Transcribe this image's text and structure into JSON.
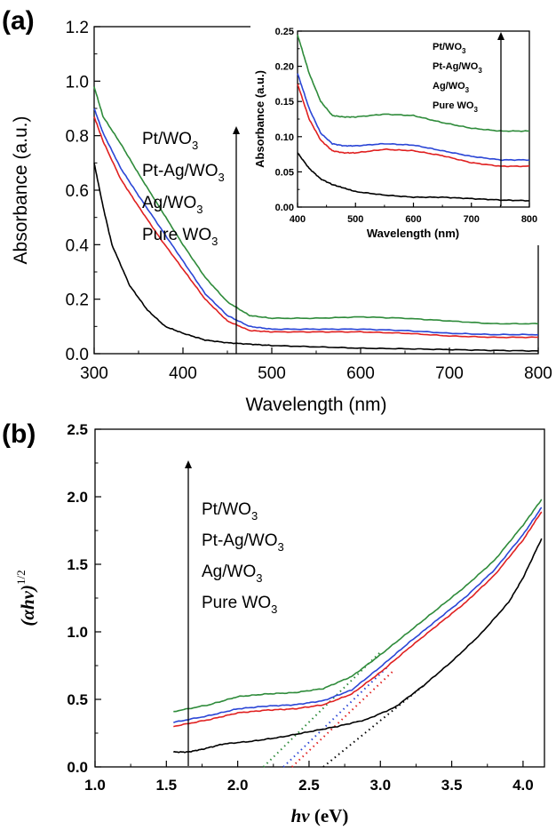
{
  "chart_data": [
    {
      "panel": "(a)",
      "type": "line",
      "xlabel": "Wavelength (nm)",
      "ylabel": "Absorbance (a.u.)",
      "xlim": [
        300,
        800
      ],
      "ylim": [
        0.0,
        1.2
      ],
      "xticks": [
        300,
        400,
        500,
        600,
        700,
        800
      ],
      "yticks": [
        0.0,
        0.2,
        0.4,
        0.6,
        0.8,
        1.0,
        1.2
      ],
      "grid": false,
      "legend_position": "left-middle",
      "legend_arrow": "upward",
      "series": [
        {
          "name": "Pt/WO3",
          "label_main": "Pt/WO",
          "sub": "3",
          "color": "#2e8b3a",
          "x": [
            300,
            310,
            330,
            350,
            375,
            400,
            425,
            450,
            475,
            500,
            550,
            600,
            650,
            700,
            750,
            800
          ],
          "y": [
            0.98,
            0.87,
            0.77,
            0.66,
            0.53,
            0.4,
            0.28,
            0.19,
            0.14,
            0.13,
            0.13,
            0.135,
            0.13,
            0.12,
            0.11,
            0.11
          ]
        },
        {
          "name": "Pt-Ag/WO3",
          "label_main": "Pt-Ag/WO",
          "sub": "3",
          "color": "#2b46d6",
          "x": [
            300,
            310,
            330,
            350,
            375,
            400,
            425,
            450,
            475,
            500,
            550,
            600,
            650,
            700,
            750,
            800
          ],
          "y": [
            0.9,
            0.81,
            0.68,
            0.58,
            0.46,
            0.34,
            0.22,
            0.14,
            0.1,
            0.09,
            0.09,
            0.09,
            0.085,
            0.075,
            0.07,
            0.07
          ]
        },
        {
          "name": "Ag/WO3",
          "label_main": "Ag/WO",
          "sub": "3",
          "color": "#e02020",
          "x": [
            300,
            310,
            330,
            350,
            375,
            400,
            425,
            450,
            475,
            500,
            550,
            600,
            650,
            700,
            750,
            800
          ],
          "y": [
            0.87,
            0.78,
            0.64,
            0.54,
            0.42,
            0.31,
            0.2,
            0.12,
            0.085,
            0.08,
            0.08,
            0.08,
            0.075,
            0.065,
            0.06,
            0.06
          ]
        },
        {
          "name": "Pure WO3",
          "label_main": "Pure WO",
          "sub": "3",
          "color": "#000000",
          "x": [
            300,
            310,
            320,
            340,
            360,
            380,
            400,
            425,
            450,
            475,
            500,
            550,
            600,
            650,
            700,
            750,
            800
          ],
          "y": [
            0.7,
            0.54,
            0.4,
            0.25,
            0.16,
            0.1,
            0.075,
            0.05,
            0.04,
            0.035,
            0.03,
            0.025,
            0.02,
            0.018,
            0.015,
            0.012,
            0.01
          ]
        }
      ]
    },
    {
      "panel": "(a) inset",
      "type": "line",
      "xlabel": "Wavelength (nm)",
      "ylabel": "Absorbance (a.u.)",
      "xlim": [
        400,
        800
      ],
      "ylim": [
        0.0,
        0.25
      ],
      "xticks": [
        400,
        500,
        600,
        700,
        800
      ],
      "yticks": [
        0.0,
        0.05,
        0.1,
        0.15,
        0.2,
        0.25
      ],
      "ytick_labels": [
        "0.00",
        "0.05",
        "0.10",
        "0.15",
        "0.20",
        "0.25"
      ],
      "grid": false,
      "legend_position": "top-right",
      "legend_arrow": "upward",
      "series": [
        {
          "name": "Pt/WO3",
          "label_main": "Pt/WO",
          "sub": "3",
          "color": "#2e8b3a",
          "x": [
            400,
            420,
            440,
            460,
            480,
            500,
            550,
            600,
            650,
            700,
            750,
            800
          ],
          "y": [
            0.245,
            0.19,
            0.15,
            0.13,
            0.128,
            0.128,
            0.132,
            0.13,
            0.12,
            0.112,
            0.108,
            0.108
          ]
        },
        {
          "name": "Pt-Ag/WO3",
          "label_main": "Pt-Ag/WO",
          "sub": "3",
          "color": "#2b46d6",
          "x": [
            400,
            420,
            440,
            460,
            480,
            500,
            550,
            600,
            650,
            700,
            750,
            800
          ],
          "y": [
            0.19,
            0.14,
            0.105,
            0.09,
            0.087,
            0.087,
            0.09,
            0.088,
            0.08,
            0.072,
            0.067,
            0.067
          ]
        },
        {
          "name": "Ag/WO3",
          "label_main": "Ag/WO",
          "sub": "3",
          "color": "#e02020",
          "x": [
            400,
            420,
            440,
            460,
            480,
            500,
            550,
            600,
            650,
            700,
            750,
            800
          ],
          "y": [
            0.175,
            0.125,
            0.095,
            0.08,
            0.077,
            0.077,
            0.082,
            0.08,
            0.073,
            0.063,
            0.058,
            0.058
          ]
        },
        {
          "name": "Pure WO3",
          "label_main": "Pure WO",
          "sub": "3",
          "color": "#000000",
          "x": [
            400,
            420,
            440,
            460,
            480,
            500,
            550,
            600,
            650,
            700,
            750,
            800
          ],
          "y": [
            0.077,
            0.055,
            0.04,
            0.032,
            0.027,
            0.022,
            0.017,
            0.014,
            0.014,
            0.012,
            0.01,
            0.009
          ]
        }
      ]
    },
    {
      "panel": "(b)",
      "type": "line",
      "xlabel": "hν (eV)",
      "xlabel_italic": "hν",
      "xlabel_unit": " (eV)",
      "ylabel": "(αhν)1/2",
      "ylabel_italic": "(αhν)",
      "ylabel_sup": "1/2",
      "xlim": [
        1.0,
        4.15
      ],
      "ylim": [
        0.0,
        2.5
      ],
      "xticks": [
        1.0,
        1.5,
        2.0,
        2.5,
        3.0,
        3.5,
        4.0
      ],
      "xtick_labels": [
        "1.0",
        "1.5",
        "2.0",
        "2.5",
        "3.0",
        "3.5",
        "4.0"
      ],
      "yticks": [
        0.0,
        0.5,
        1.0,
        1.5,
        2.0,
        2.5
      ],
      "ytick_labels": [
        "0.0",
        "0.5",
        "1.0",
        "1.5",
        "2.0",
        "2.5"
      ],
      "grid": false,
      "legend_position": "left",
      "legend_arrow": "upward",
      "series": [
        {
          "name": "Pt/WO3",
          "label_main": "Pt/WO",
          "sub": "3",
          "color": "#2e8b3a",
          "x": [
            1.55,
            1.8,
            2.0,
            2.2,
            2.4,
            2.6,
            2.8,
            3.0,
            3.2,
            3.4,
            3.6,
            3.8,
            4.0,
            4.13
          ],
          "y": [
            0.41,
            0.46,
            0.52,
            0.54,
            0.55,
            0.58,
            0.67,
            0.83,
            1.0,
            1.17,
            1.34,
            1.53,
            1.79,
            1.98
          ],
          "tangent": [
            2.18,
            3.0,
            0.0,
            0.85
          ]
        },
        {
          "name": "Pt-Ag/WO3",
          "label_main": "Pt-Ag/WO",
          "sub": "3",
          "color": "#2b46d6",
          "x": [
            1.55,
            1.8,
            2.0,
            2.2,
            2.4,
            2.6,
            2.8,
            3.0,
            3.2,
            3.4,
            3.6,
            3.8,
            4.0,
            4.13
          ],
          "y": [
            0.33,
            0.38,
            0.43,
            0.45,
            0.46,
            0.49,
            0.57,
            0.74,
            0.92,
            1.09,
            1.26,
            1.46,
            1.72,
            1.92
          ],
          "tangent": [
            2.32,
            3.05,
            0.0,
            0.74
          ]
        },
        {
          "name": "Ag/WO3",
          "label_main": "Ag/WO",
          "sub": "3",
          "color": "#e02020",
          "x": [
            1.55,
            1.8,
            2.0,
            2.2,
            2.4,
            2.6,
            2.8,
            3.0,
            3.2,
            3.4,
            3.6,
            3.8,
            4.0,
            4.13
          ],
          "y": [
            0.3,
            0.35,
            0.4,
            0.42,
            0.43,
            0.46,
            0.54,
            0.7,
            0.88,
            1.05,
            1.22,
            1.42,
            1.68,
            1.89
          ],
          "tangent": [
            2.38,
            3.1,
            0.0,
            0.72
          ]
        },
        {
          "name": "Pure WO3",
          "label_main": "Pure WO",
          "sub": "3",
          "color": "#000000",
          "x": [
            1.55,
            1.65,
            1.75,
            1.9,
            2.1,
            2.3,
            2.5,
            2.7,
            2.9,
            3.1,
            3.3,
            3.5,
            3.7,
            3.9,
            4.0,
            4.13
          ],
          "y": [
            0.11,
            0.11,
            0.13,
            0.17,
            0.19,
            0.22,
            0.26,
            0.3,
            0.35,
            0.44,
            0.6,
            0.78,
            0.98,
            1.22,
            1.4,
            1.69
          ],
          "tangent": [
            2.6,
            3.3,
            0.0,
            0.6
          ]
        }
      ]
    }
  ]
}
